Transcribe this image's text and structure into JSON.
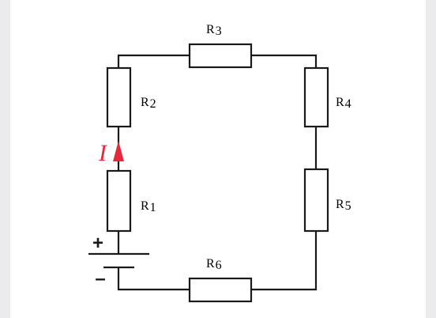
{
  "diagram": {
    "resistors": [
      {
        "id": "R1",
        "symbol": "R",
        "index": "1"
      },
      {
        "id": "R2",
        "symbol": "R",
        "index": "2"
      },
      {
        "id": "R3",
        "symbol": "R",
        "index": "3"
      },
      {
        "id": "R4",
        "symbol": "R",
        "index": "4"
      },
      {
        "id": "R5",
        "symbol": "R",
        "index": "5"
      },
      {
        "id": "R6",
        "symbol": "R",
        "index": "6"
      }
    ],
    "current_label": "I",
    "battery": {
      "plus": "+",
      "minus": "–"
    },
    "colors": {
      "wire": "#1a1a1a",
      "current_arrow": "#e8283a",
      "background_band": "#ebebed"
    }
  }
}
